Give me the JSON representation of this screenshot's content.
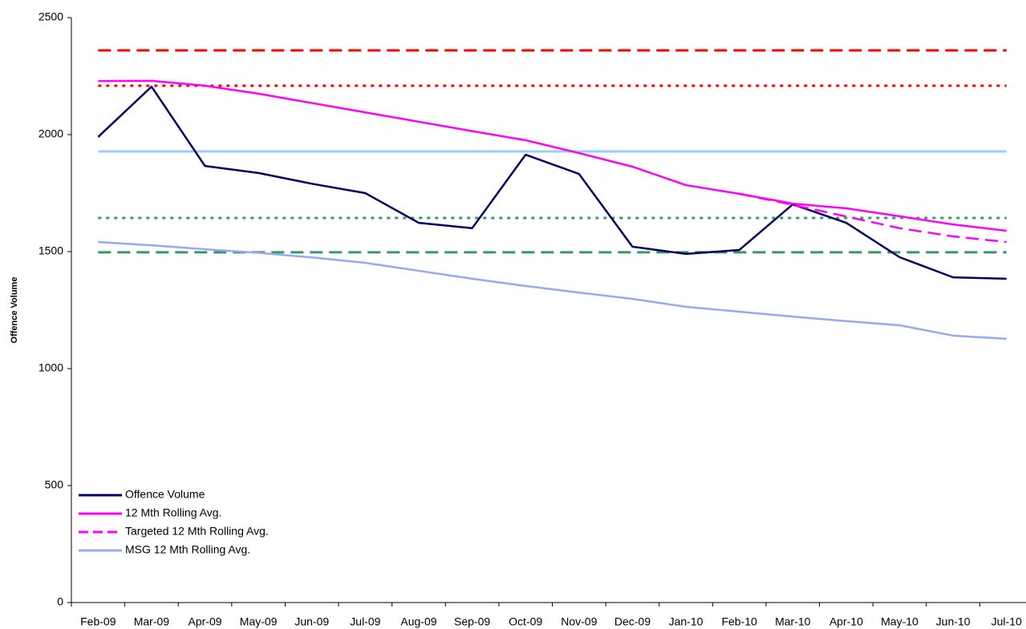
{
  "chart_data": {
    "type": "line",
    "y_label": "Offence Volume",
    "categories": [
      "Feb-09",
      "Mar-09",
      "Apr-09",
      "May-09",
      "Jun-09",
      "Jul-09",
      "Aug-09",
      "Sep-09",
      "Oct-09",
      "Nov-09",
      "Dec-09",
      "Jan-10",
      "Feb-10",
      "Mar-10",
      "Apr-10",
      "May-10",
      "Jun-10",
      "Jul-10"
    ],
    "series": [
      {
        "name": "Offence Volume",
        "color": "#000066",
        "dash": "solid",
        "values": [
          1990,
          2205,
          1866,
          1836,
          1790,
          1750,
          1623,
          1600,
          1914,
          1832,
          1521,
          1490,
          1507,
          1702,
          1623,
          1476,
          1390,
          1384
        ]
      },
      {
        "name": "12 Mth Rolling Avg.",
        "color": "#ff00ff",
        "dash": "solid",
        "values": [
          2229,
          2230,
          2209,
          2175,
          2135,
          2095,
          2055,
          2015,
          1976,
          1921,
          1863,
          1784,
          1747,
          1705,
          1685,
          1651,
          1616,
          1589
        ]
      },
      {
        "name": "Targeted 12 Mth Rolling Avg.",
        "color": "#ff00ff",
        "dash": "dashed",
        "values": [
          null,
          null,
          null,
          null,
          null,
          null,
          null,
          null,
          null,
          null,
          null,
          null,
          1747,
          1700,
          1650,
          1600,
          1565,
          1541
        ]
      },
      {
        "name": "MSG 12 Mth Rolling Avg.",
        "color": "#99a8f0",
        "dash": "solid",
        "values": [
          1541,
          1527,
          1510,
          1495,
          1475,
          1452,
          1418,
          1384,
          1353,
          1325,
          1298,
          1264,
          1243,
          1222,
          1203,
          1185,
          1141,
          1127
        ]
      }
    ],
    "reference_lines": [
      {
        "value": 2360,
        "color": "#ff0000",
        "dash": "dashed"
      },
      {
        "value": 2209,
        "color": "#ff0000",
        "dash": "dotted"
      },
      {
        "value": 1928,
        "color": "#99ccff",
        "dash": "solid"
      },
      {
        "value": 1644,
        "color": "#339966",
        "dash": "dotted"
      },
      {
        "value": 1497,
        "color": "#339966",
        "dash": "dashed"
      }
    ],
    "ylim": [
      0,
      2500
    ],
    "yticks": [
      0,
      500,
      1000,
      1500,
      2000,
      2500
    ],
    "legend": "lower left"
  }
}
